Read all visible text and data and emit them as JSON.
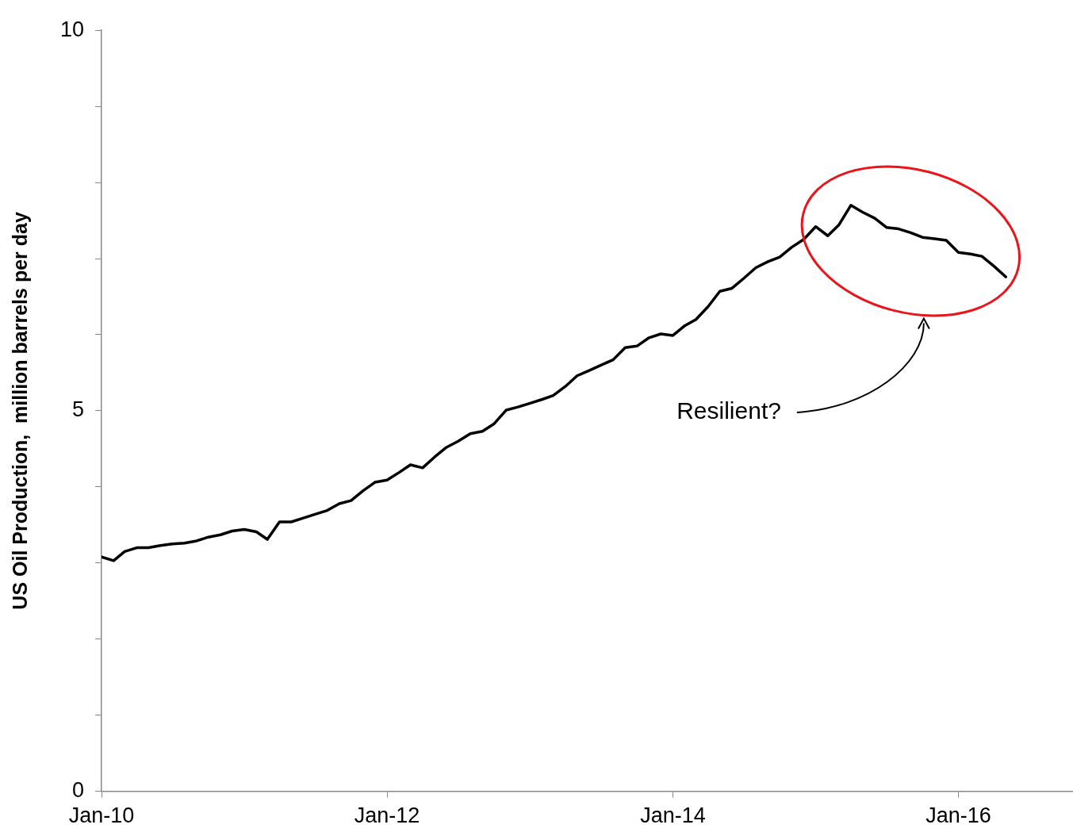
{
  "chart_data": {
    "type": "line",
    "ylabel": "US Oil Production,  million barrels per day",
    "x": [
      "2010-01",
      "2010-02",
      "2010-03",
      "2010-04",
      "2010-05",
      "2010-06",
      "2010-07",
      "2010-08",
      "2010-09",
      "2010-10",
      "2010-11",
      "2010-12",
      "2011-01",
      "2011-02",
      "2011-03",
      "2011-04",
      "2011-05",
      "2011-06",
      "2011-07",
      "2011-08",
      "2011-09",
      "2011-10",
      "2011-11",
      "2011-12",
      "2012-01",
      "2012-02",
      "2012-03",
      "2012-04",
      "2012-05",
      "2012-06",
      "2012-07",
      "2012-08",
      "2012-09",
      "2012-10",
      "2012-11",
      "2012-12",
      "2013-01",
      "2013-02",
      "2013-03",
      "2013-04",
      "2013-05",
      "2013-06",
      "2013-07",
      "2013-08",
      "2013-09",
      "2013-10",
      "2013-11",
      "2013-12",
      "2014-01",
      "2014-02",
      "2014-03",
      "2014-04",
      "2014-05",
      "2014-06",
      "2014-07",
      "2014-08",
      "2014-09",
      "2014-10",
      "2014-11",
      "2014-12",
      "2015-01",
      "2015-02",
      "2015-03",
      "2015-04",
      "2015-05",
      "2015-06",
      "2015-07",
      "2015-08",
      "2015-09",
      "2015-10",
      "2015-11",
      "2015-12",
      "2016-01",
      "2016-02",
      "2016-03",
      "2016-04",
      "2016-05"
    ],
    "series": [
      {
        "color": "#000000",
        "values": [
          3.08,
          3.03,
          3.15,
          3.2,
          3.2,
          3.23,
          3.25,
          3.26,
          3.29,
          3.34,
          3.37,
          3.42,
          3.44,
          3.41,
          3.31,
          3.54,
          3.54,
          3.59,
          3.64,
          3.69,
          3.78,
          3.82,
          3.95,
          4.06,
          4.09,
          4.19,
          4.29,
          4.25,
          4.39,
          4.52,
          4.6,
          4.7,
          4.73,
          4.83,
          5.01,
          5.05,
          5.1,
          5.15,
          5.2,
          5.32,
          5.46,
          5.53,
          5.6,
          5.67,
          5.83,
          5.85,
          5.96,
          6.01,
          5.99,
          6.12,
          6.2,
          6.37,
          6.57,
          6.61,
          6.74,
          6.88,
          6.96,
          7.02,
          7.15,
          7.25,
          7.42,
          7.3,
          7.44,
          7.7,
          7.61,
          7.53,
          7.41,
          7.39,
          7.34,
          7.28,
          7.26,
          7.24,
          7.08,
          7.06,
          7.03,
          6.9,
          6.76
        ]
      }
    ],
    "xlim": [
      "2010-01",
      "2016-10-20"
    ],
    "xticks": [
      {
        "value": "2010-01",
        "label": "Jan-10"
      },
      {
        "value": "2012-01",
        "label": "Jan-12"
      },
      {
        "value": "2014-01",
        "label": "Jan-14"
      },
      {
        "value": "2016-01",
        "label": "Jan-16"
      }
    ],
    "ylim": [
      0,
      10
    ],
    "yticks": [
      0,
      {
        "value": 1,
        "label": null
      },
      {
        "value": 2,
        "label": null
      },
      {
        "value": 3,
        "label": null
      },
      {
        "value": 4,
        "label": null
      },
      5,
      {
        "value": 6,
        "label": null
      },
      {
        "value": 7,
        "label": null
      },
      {
        "value": 8,
        "label": null
      },
      {
        "value": 9,
        "label": null
      },
      10
    ],
    "annotations": [
      "Resilient?"
    ],
    "grid": false,
    "legend": false,
    "marker": "none",
    "line_style": "solid"
  }
}
